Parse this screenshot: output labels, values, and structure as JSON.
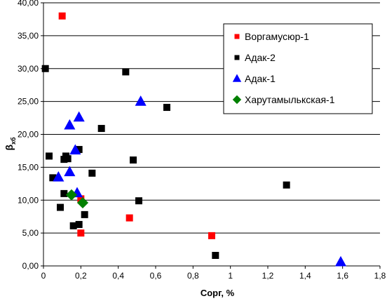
{
  "chart_data": {
    "type": "scatter",
    "title": "",
    "xlabel": "Сорг, %",
    "ylabel": "β",
    "ylabel_sub": "хб",
    "xlim": [
      0,
      1.8
    ],
    "ylim": [
      0,
      40
    ],
    "x_ticks": [
      "0",
      "0,2",
      "0,4",
      "0,6",
      "0,8",
      "1",
      "1,2",
      "1,4",
      "1,6",
      "1,8"
    ],
    "y_ticks": [
      "0,00",
      "5,00",
      "10,00",
      "15,00",
      "20,00",
      "25,00",
      "30,00",
      "35,00",
      "40,00"
    ],
    "grid": "horizontal",
    "legend_position": "top-right",
    "series": [
      {
        "name": "Воргамусюр-1",
        "marker": "square",
        "color": "#ff0000",
        "points": [
          [
            0.1,
            38.0
          ],
          [
            0.2,
            5.0
          ],
          [
            0.46,
            7.3
          ],
          [
            0.9,
            4.6
          ],
          [
            0.2,
            10.2
          ]
        ]
      },
      {
        "name": "Адак-2",
        "marker": "square",
        "color": "#000000",
        "points": [
          [
            0.01,
            30.0
          ],
          [
            0.03,
            16.7
          ],
          [
            0.05,
            13.4
          ],
          [
            0.09,
            8.9
          ],
          [
            0.11,
            11.0
          ],
          [
            0.11,
            16.2
          ],
          [
            0.12,
            16.7
          ],
          [
            0.13,
            16.3
          ],
          [
            0.16,
            6.1
          ],
          [
            0.19,
            6.3
          ],
          [
            0.19,
            17.7
          ],
          [
            0.22,
            7.8
          ],
          [
            0.26,
            14.1
          ],
          [
            0.31,
            20.9
          ],
          [
            0.44,
            29.5
          ],
          [
            0.48,
            16.1
          ],
          [
            0.51,
            9.9
          ],
          [
            0.66,
            24.1
          ],
          [
            0.92,
            1.6
          ],
          [
            1.3,
            12.3
          ]
        ]
      },
      {
        "name": "Адак-1",
        "marker": "triangle",
        "color": "#0000ff",
        "points": [
          [
            0.08,
            13.5
          ],
          [
            0.14,
            14.3
          ],
          [
            0.14,
            21.4
          ],
          [
            0.17,
            17.6
          ],
          [
            0.18,
            11.1
          ],
          [
            0.19,
            22.6
          ],
          [
            0.52,
            25.0
          ],
          [
            1.59,
            0.6
          ]
        ]
      },
      {
        "name": "Харутамылькская-1",
        "marker": "diamond",
        "color": "#008000",
        "points": [
          [
            0.15,
            10.8
          ],
          [
            0.21,
            9.6
          ]
        ]
      }
    ]
  }
}
